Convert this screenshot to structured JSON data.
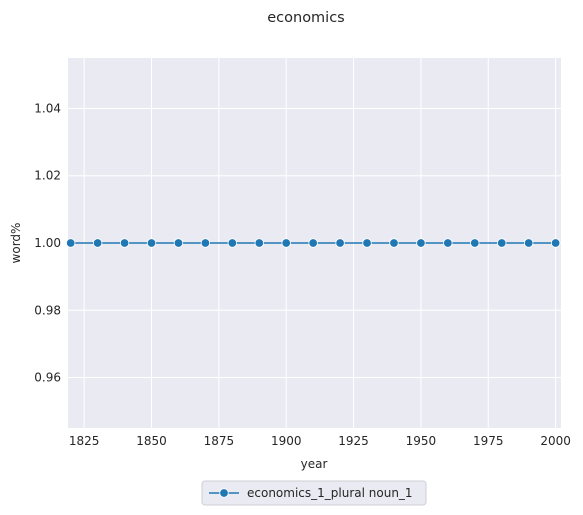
{
  "chart_data": {
    "type": "line",
    "title": "economics",
    "xlabel": "year",
    "ylabel": "word%",
    "xlim": [
      1819,
      2002
    ],
    "ylim": [
      0.945,
      1.055
    ],
    "xticks": [
      1825,
      1850,
      1875,
      1900,
      1925,
      1950,
      1975,
      2000
    ],
    "xtick_labels": [
      "1825",
      "1850",
      "1875",
      "1900",
      "1925",
      "1950",
      "1975",
      "2000"
    ],
    "yticks": [
      0.96,
      0.98,
      1.0,
      1.02,
      1.04
    ],
    "ytick_labels": [
      "0.96",
      "0.98",
      "1.00",
      "1.02",
      "1.04"
    ],
    "grid": true,
    "legend_position": "below-center",
    "background": "#eaeaf2",
    "series": [
      {
        "name": "economics_1_plural noun_1",
        "color": "#1f77b4",
        "marker": "circle",
        "x": [
          1820,
          1830,
          1840,
          1850,
          1860,
          1870,
          1880,
          1890,
          1900,
          1910,
          1920,
          1930,
          1940,
          1950,
          1960,
          1970,
          1980,
          1990,
          2000
        ],
        "y": [
          1.0,
          1.0,
          1.0,
          1.0,
          1.0,
          1.0,
          1.0,
          1.0,
          1.0,
          1.0,
          1.0,
          1.0,
          1.0,
          1.0,
          1.0,
          1.0,
          1.0,
          1.0,
          1.0
        ]
      }
    ]
  }
}
